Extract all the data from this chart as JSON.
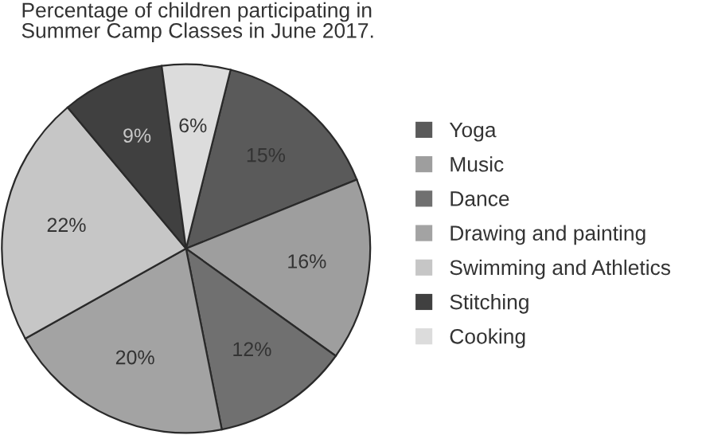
{
  "chart_data": {
    "type": "pie",
    "title": "Percentage of children participating in\nSummer Camp Classes in June 2017.",
    "categories": [
      "Yoga",
      "Music",
      "Dance",
      "Drawing and painting",
      "Swimming and Athletics",
      "Stitching",
      "Cooking"
    ],
    "values": [
      15,
      16,
      12,
      20,
      22,
      9,
      6
    ],
    "value_labels": [
      "15%",
      "16%",
      "12%",
      "20%",
      "22%",
      "9%",
      "6%"
    ],
    "colors": [
      "#5a5a5a",
      "#9e9e9e",
      "#707070",
      "#a3a3a3",
      "#c6c6c6",
      "#404040",
      "#dcdcdc"
    ],
    "legend": "right"
  }
}
